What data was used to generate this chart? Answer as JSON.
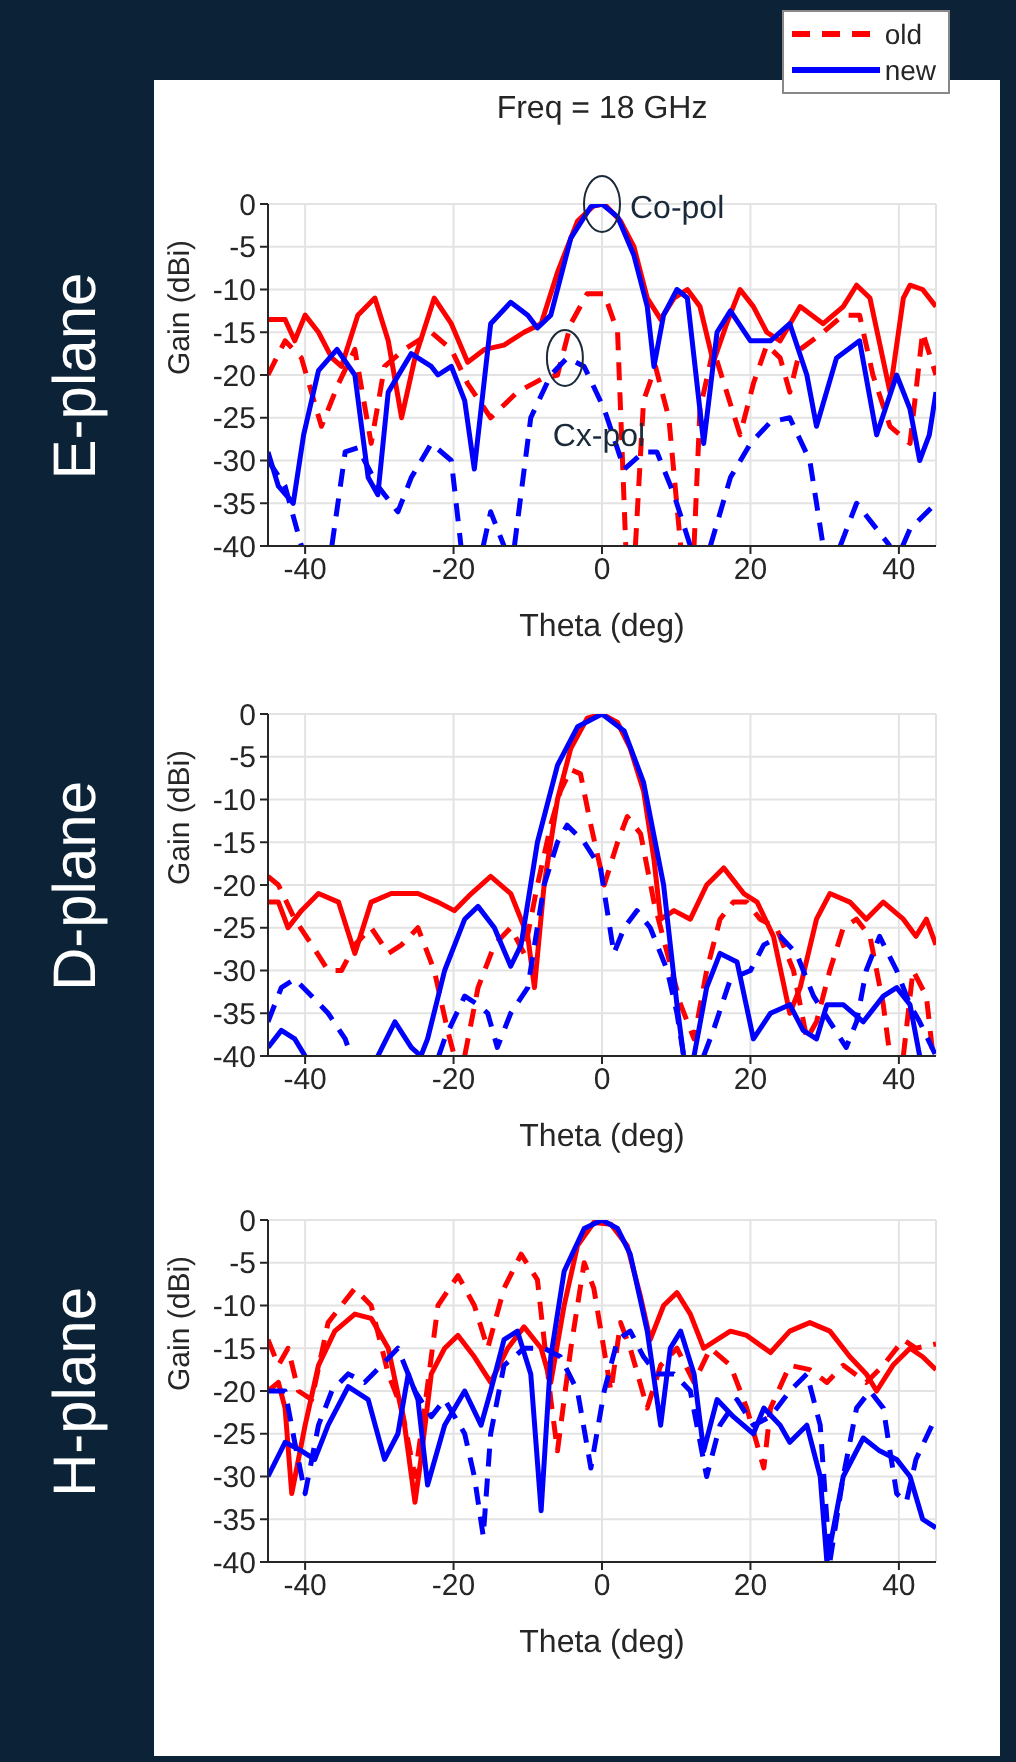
{
  "chart_data": [
    {
      "type": "line",
      "title": "Freq = 18 GHz",
      "subtitle": "E-plane",
      "xlabel": "Theta (deg)",
      "ylabel": "Gain (dBi)",
      "xlim": [
        -45,
        45
      ],
      "xticks": [
        -40,
        -20,
        0,
        20,
        40
      ],
      "ylim": [
        -40,
        0
      ],
      "yticks": [
        0,
        -5,
        -10,
        -15,
        -20,
        -25,
        -30,
        -35,
        -40
      ],
      "grid": true,
      "legend": "top right",
      "annotations": [
        {
          "text": "Co-pol",
          "x": 0,
          "y": 0
        },
        {
          "text": "Cx-pol",
          "x": -5,
          "y": -18
        }
      ],
      "series": [
        {
          "color": "#ff0000",
          "line_style": "solid",
          "x": [
            -45,
            -42.7,
            -41.4,
            -40,
            -38.2,
            -36.4,
            -35.1,
            -32.9,
            -30.6,
            -28.8,
            -27,
            -25.2,
            -22.6,
            -20.3,
            -18.1,
            -15.8,
            -13.2,
            -10.5,
            -8.2,
            -6,
            -3.3,
            -1.1,
            0.3,
            2.5,
            4.3,
            6.1,
            7.9,
            9.7,
            11.5,
            13.2,
            15,
            16.8,
            18.6,
            20.4,
            22.2,
            24,
            26.7,
            29.8,
            32.5,
            34.3,
            36.1,
            38.8,
            40.6,
            41.5,
            43.2,
            45
          ],
          "values": [
            -13.5,
            -13.5,
            -16,
            -13,
            -15,
            -18,
            -19,
            -13,
            -11,
            -16,
            -25,
            -18,
            -11,
            -14,
            -18.5,
            -17,
            -16.5,
            -15,
            -14,
            -8,
            -2,
            -0.2,
            0,
            -2,
            -5,
            -11,
            -13.5,
            -11,
            -10,
            -12,
            -18.5,
            -14,
            -10,
            -12,
            -15,
            -16,
            -12,
            -14,
            -12,
            -9.5,
            -11,
            -22,
            -11,
            -9.5,
            -10,
            -12
          ]
        },
        {
          "name": "old",
          "color": "#ff0000",
          "line_style": "dashed",
          "x": [
            -45,
            -42.7,
            -40.5,
            -37.8,
            -35.5,
            -33.3,
            -31.1,
            -29.3,
            -26.6,
            -23,
            -20.3,
            -18.1,
            -15,
            -11.4,
            -8.2,
            -6,
            -4.2,
            -2,
            0.3,
            2.1,
            3.2,
            3.6,
            4.5,
            5.6,
            7.2,
            9,
            10.6,
            11.2,
            12.4,
            13.2,
            15,
            16.8,
            18.6,
            20.4,
            22.2,
            24,
            25.3,
            26.7,
            29.8,
            32.5,
            34.7,
            36.5,
            38.8,
            41.5,
            43.2,
            45
          ],
          "values": [
            -20,
            -16,
            -18,
            -26,
            -21,
            -17,
            -28,
            -19,
            -17,
            -15,
            -17,
            -21,
            -25,
            -22,
            -20.5,
            -20,
            -14,
            -10.5,
            -10.5,
            -15,
            -40,
            null,
            -40,
            -23,
            -19,
            -25,
            -40,
            null,
            -40,
            -24,
            -17,
            -22,
            -27,
            -21,
            -16.5,
            -18,
            -22,
            -17,
            -15,
            -13,
            -13,
            -20,
            -26,
            -28,
            -15,
            -20
          ]
        },
        {
          "name": "new",
          "color": "#0000ff",
          "line_style": "solid",
          "x": [
            -45,
            -43.6,
            -41.6,
            -40.2,
            -38.2,
            -35.7,
            -33.3,
            -31.5,
            -30.2,
            -28.8,
            -25.7,
            -23,
            -22.1,
            -20.3,
            -18.5,
            -17.2,
            -15,
            -12.3,
            -10,
            -8.7,
            -6.9,
            -4.2,
            -1.5,
            0,
            2.1,
            4.3,
            6.1,
            7,
            8.3,
            10.1,
            11.5,
            13.7,
            15.5,
            17.3,
            20,
            22.7,
            25.3,
            27.6,
            28.9,
            31.6,
            34.7,
            37,
            39.7,
            41.5,
            42.8,
            44.1,
            45
          ],
          "values": [
            -29,
            -33,
            -35,
            -27,
            -19.5,
            -17,
            -20,
            -32,
            -34,
            -22,
            -17.5,
            -19,
            -20,
            -19,
            -23,
            -31,
            -14,
            -11.5,
            -13,
            -14.5,
            -13,
            -4,
            -0.3,
            0,
            -1.5,
            -6,
            -12,
            -19,
            -13,
            -10,
            -11,
            -28,
            -15,
            -12.5,
            -16,
            -16,
            -14,
            -20,
            -26,
            -18,
            -16,
            -27,
            -20,
            -24,
            -30,
            -27,
            -22
          ]
        },
        {
          "color": "#0000ff",
          "line_style": "dashed",
          "x": [
            -45,
            -42.7,
            -40.5,
            -40,
            -36.4,
            -34.6,
            -32.9,
            -30.2,
            -27.5,
            -25.7,
            -23,
            -20.3,
            -19,
            -17,
            -16,
            -15,
            -13.2,
            -12.5,
            -11.8,
            -9.6,
            -6.9,
            -4.7,
            -2.4,
            0.3,
            3,
            5.6,
            7.4,
            9.7,
            11.9,
            13,
            14.6,
            17.3,
            20,
            22.7,
            25.3,
            28,
            29.8,
            31,
            32.1,
            34.3,
            36.1,
            38.8,
            39.5,
            40.5,
            41.5,
            45
          ],
          "values": [
            -30,
            -33,
            -40,
            null,
            -40,
            -29,
            -28.5,
            -33,
            -36,
            -32,
            -28,
            -30,
            -40,
            null,
            -40,
            -36,
            -40,
            null,
            -40,
            -25,
            -20,
            -18,
            -19,
            -24,
            -31,
            -29,
            -29,
            -34,
            -40,
            null,
            -40,
            -32,
            -28,
            -25.5,
            -25,
            -30,
            -40,
            null,
            -40,
            -35,
            -37,
            -40,
            null,
            -40,
            -38,
            -35
          ]
        }
      ]
    },
    {
      "type": "line",
      "subtitle": "D-plane",
      "xlabel": "Theta (deg)",
      "ylabel": "Gain (dBi)",
      "xlim": [
        -45,
        45
      ],
      "xticks": [
        -40,
        -20,
        0,
        20,
        40
      ],
      "ylim": [
        -40,
        0
      ],
      "yticks": [
        0,
        -5,
        -10,
        -15,
        -20,
        -25,
        -30,
        -35,
        -40
      ],
      "grid": true,
      "series": [
        {
          "color": "#ff0000",
          "line_style": "solid",
          "x": [
            -45,
            -43.6,
            -42.3,
            -40.5,
            -38.2,
            -35.5,
            -33.3,
            -31.1,
            -28.4,
            -24.8,
            -22.1,
            -19.9,
            -17.6,
            -15,
            -12.3,
            -10,
            -9.1,
            -7.8,
            -6,
            -4.2,
            -2,
            0,
            2.1,
            3.8,
            5.6,
            7,
            7.9,
            9.7,
            11.9,
            14.1,
            16.4,
            19.1,
            20.9,
            23.1,
            25.3,
            26.7,
            28.9,
            30.7,
            33.4,
            35.6,
            37.9,
            40.6,
            42.3,
            43.7,
            45
          ],
          "values": [
            -22,
            -22,
            -25,
            -23,
            -21,
            -22,
            -28,
            -22,
            -21,
            -21,
            -22,
            -23,
            -21,
            -19,
            -21,
            -26,
            -32,
            -20,
            -10,
            -4,
            -0.5,
            0,
            -1,
            -4,
            -9,
            -17,
            -24,
            -23,
            -24,
            -20,
            -18,
            -21,
            -22,
            -26,
            -35,
            -32,
            -24,
            -21,
            -22,
            -24,
            -22,
            -24,
            -26,
            -24,
            -27
          ]
        },
        {
          "color": "#ff0000",
          "line_style": "dashed",
          "x": [
            -45,
            -43.6,
            -41.4,
            -39.1,
            -36.9,
            -35.1,
            -33.3,
            -31.1,
            -28.8,
            -27,
            -24.8,
            -22.6,
            -20.8,
            -19.9,
            -19.5,
            -18.5,
            -16.7,
            -14.5,
            -12.3,
            -10.5,
            -8.7,
            -6.9,
            -5.6,
            -4.2,
            -2.9,
            -1.5,
            0.3,
            2.1,
            3.4,
            5.2,
            7,
            8.8,
            10.6,
            12.4,
            14.1,
            15.9,
            17.7,
            19.5,
            21.3,
            23.5,
            25.8,
            27.6,
            28.9,
            30.7,
            32.5,
            34.3,
            36.1,
            37.9,
            38.8,
            39.5,
            40.6,
            41.9,
            43.7,
            44.6
          ],
          "values": [
            -19,
            -20,
            -24,
            -27,
            -30,
            -30,
            -27,
            -25,
            -28,
            -27,
            -25,
            -30,
            -37,
            -40,
            null,
            -40,
            -32,
            -27,
            -25,
            -28,
            -20,
            -13,
            -9,
            -6.5,
            -7,
            -13,
            -20,
            -15,
            -12,
            -14,
            -22,
            -28,
            -34,
            -38,
            -30,
            -24,
            -22,
            -22,
            -24,
            -25,
            -30,
            -38,
            -36,
            -30,
            -25,
            -24,
            -26,
            -34,
            -40,
            null,
            -40,
            -30,
            -33,
            -40
          ]
        },
        {
          "color": "#0000ff",
          "line_style": "solid",
          "x": [
            -45,
            -43.2,
            -41.4,
            -40,
            -35,
            -30.2,
            -27.9,
            -25.7,
            -24.4,
            -23.5,
            -21.2,
            -18.5,
            -16.7,
            -14.5,
            -12.3,
            -10.9,
            -8.7,
            -6,
            -3.3,
            0,
            3,
            5.6,
            8.3,
            10.1,
            11,
            11.7,
            12.4,
            14.1,
            15.9,
            18.2,
            20.4,
            22.7,
            25.3,
            27.1,
            28.9,
            30.3,
            32.5,
            35.2,
            37.9,
            39.7,
            41.5,
            42.8
          ],
          "values": [
            -39,
            -37,
            -38,
            -40,
            null,
            -40,
            -36,
            -39,
            -40,
            -38,
            -30,
            -24,
            -22.5,
            -25,
            -29.5,
            -27,
            -15,
            -6,
            -1.5,
            0,
            -2,
            -8,
            -20,
            -34,
            -40,
            null,
            -40,
            -32,
            -28,
            -29,
            -38,
            -35,
            -34,
            -37,
            -38,
            -34,
            -34,
            -36,
            -33,
            -32,
            -34,
            -40
          ]
        },
        {
          "color": "#0000ff",
          "line_style": "dashed",
          "x": [
            -45,
            -43.2,
            -41.4,
            -39.1,
            -36.9,
            -34.6,
            -33.8,
            -30,
            -22,
            -21.2,
            -18.5,
            -16.7,
            -15.4,
            -14.1,
            -12.3,
            -10,
            -7.8,
            -6,
            -4.7,
            -2.4,
            -0.2,
            1.6,
            3,
            4.7,
            6.5,
            8.8,
            10.1,
            11,
            12,
            13.7,
            15,
            17.3,
            20,
            21.8,
            24,
            26.2,
            28.5,
            30.7,
            32.9,
            34.3,
            35.6,
            37.4,
            39.7,
            41.5,
            42.8,
            45
          ],
          "values": [
            -36,
            -32,
            -31,
            -33,
            -35,
            -38,
            -40,
            null,
            -40,
            -38,
            -33,
            -34,
            -35,
            -39,
            -35,
            -32,
            -20,
            -15,
            -13,
            -15,
            -18,
            -28,
            -25,
            -23,
            -25,
            -30,
            -35,
            -40,
            null,
            -40,
            -37,
            -31,
            -30,
            -27,
            -26,
            -28,
            -33,
            -36,
            -39,
            -36,
            -30,
            -26,
            -30,
            -34,
            -36,
            -40
          ]
        }
      ]
    },
    {
      "type": "line",
      "subtitle": "H-plane",
      "xlabel": "Theta (deg)",
      "ylabel": "Gain (dBi)",
      "xlim": [
        -45,
        45
      ],
      "xticks": [
        -40,
        -20,
        0,
        20,
        40
      ],
      "ylim": [
        -40,
        0
      ],
      "yticks": [
        0,
        -5,
        -10,
        -15,
        -20,
        -25,
        -30,
        -35,
        -40
      ],
      "grid": true,
      "series": [
        {
          "color": "#ff0000",
          "line_style": "solid",
          "x": [
            -45,
            -43.6,
            -42.7,
            -41.8,
            -40.9,
            -40,
            -38.2,
            -36,
            -33.3,
            -31.1,
            -28.8,
            -26.6,
            -25.2,
            -24.4,
            -23,
            -21.2,
            -19.4,
            -17.2,
            -15,
            -12.7,
            -10.5,
            -8.2,
            -6.9,
            -5.1,
            -3.3,
            -1.1,
            1.2,
            3.4,
            5.2,
            6.5,
            8.3,
            10.1,
            11.9,
            13.7,
            15.5,
            17.3,
            19.5,
            22.7,
            25.3,
            28,
            30.7,
            33.4,
            35.6,
            37,
            39.2,
            41.5,
            43.2,
            45
          ],
          "values": [
            -20,
            -19,
            -22,
            -32,
            -28,
            -24,
            -17,
            -13,
            -11,
            -11.5,
            -15,
            -24,
            -33,
            -28,
            -18,
            -15,
            -13.5,
            -16,
            -19,
            -15,
            -12.5,
            -15,
            -19,
            -10,
            -3,
            -0.3,
            -0.5,
            -3,
            -9,
            -14,
            -10,
            -8.5,
            -11,
            -15,
            -14,
            -13,
            -13.5,
            -15.5,
            -13,
            -12,
            -13,
            -16,
            -18,
            -20,
            -17,
            -15,
            -16,
            -17.5
          ]
        },
        {
          "color": "#ff0000",
          "line_style": "dashed",
          "x": [
            -45,
            -43.6,
            -42.3,
            -40.9,
            -39.1,
            -36.9,
            -33.3,
            -31.1,
            -28.8,
            -27,
            -25.2,
            -23.9,
            -22.1,
            -19.4,
            -17.2,
            -15.4,
            -13.2,
            -10.9,
            -8.7,
            -6.9,
            -6,
            -4.2,
            -2.4,
            -1.1,
            1.2,
            2.5,
            3.8,
            6.1,
            7.9,
            10.1,
            12.4,
            14.6,
            17.3,
            19.5,
            21.8,
            22.7,
            25.3,
            28,
            30.3,
            32.5,
            35.6,
            37.9,
            40.6,
            42.3,
            45
          ],
          "values": [
            -14,
            -17,
            -15,
            -20,
            -21,
            -12,
            -8,
            -10,
            -18,
            -22,
            -30,
            -22,
            -10,
            -6.5,
            -10,
            -15,
            -8,
            -4,
            -7,
            -21,
            -27,
            -15,
            -5,
            -8,
            -20,
            -12,
            -15,
            -22,
            -17,
            -15,
            -19,
            -15,
            -17,
            -22,
            -29,
            -22,
            -17,
            -17.5,
            -19,
            -17,
            -19,
            -17,
            -14,
            -15,
            -14.5
          ]
        },
        {
          "color": "#0000ff",
          "line_style": "solid",
          "x": [
            -45,
            -42.7,
            -40.5,
            -38.7,
            -36.9,
            -34.2,
            -31.5,
            -29.3,
            -27.5,
            -26.1,
            -24.8,
            -23.5,
            -21.2,
            -18.5,
            -16.3,
            -15,
            -13.2,
            -11.4,
            -9.6,
            -8.2,
            -6.9,
            -5.1,
            -2.4,
            0,
            2.1,
            3.8,
            6.1,
            7.9,
            9.2,
            10.6,
            12.4,
            13.7,
            15.5,
            17.7,
            20.4,
            21.8,
            24,
            25.3,
            27.6,
            29.4,
            30.3,
            31.2,
            32.5,
            35.2,
            37.4,
            39.7,
            41.5,
            43.2,
            45
          ],
          "values": [
            -30,
            -26,
            -27,
            -28,
            -24,
            -19.5,
            -21,
            -28,
            -25,
            -18,
            -21,
            -31,
            -24,
            -20,
            -24,
            -20,
            -14,
            -13,
            -18,
            -34,
            -16,
            -6,
            -1,
            0,
            -1,
            -4,
            -13,
            -24,
            -15,
            -13,
            -18,
            -27,
            -21,
            -23,
            -25,
            -22,
            -24,
            -26,
            -24,
            -30,
            -40,
            -36,
            -30,
            -25.5,
            -27,
            -28,
            -30,
            -35,
            -36
          ]
        },
        {
          "color": "#0000ff",
          "line_style": "dashed",
          "x": [
            -45,
            -42.7,
            -41.4,
            -40,
            -38.2,
            -36.4,
            -34.2,
            -32,
            -29.7,
            -27.5,
            -25.2,
            -23,
            -21.2,
            -18.5,
            -17.2,
            -16,
            -15,
            -13.2,
            -10.5,
            -7.8,
            -5.6,
            -3.3,
            -1.5,
            0.3,
            2.1,
            3.8,
            5.6,
            7.4,
            9.7,
            11.9,
            14.1,
            15.9,
            18.2,
            20.4,
            22.7,
            25.3,
            27.6,
            29.4,
            30.7,
            32.5,
            34.3,
            36.1,
            37.9,
            39.7,
            41,
            42.3,
            45
          ],
          "values": [
            -20,
            -20,
            -26,
            -32,
            -24,
            -20,
            -18,
            -19,
            -17,
            -15,
            -20,
            -23,
            -21,
            -25,
            -30,
            -37,
            -25,
            -17,
            -15,
            -15,
            -16,
            -20,
            -29,
            -20,
            -14,
            -13,
            -16,
            -18,
            -18,
            -20,
            -30,
            -24,
            -21,
            -24,
            -23,
            -20,
            -18,
            -24,
            -40,
            -30,
            -22,
            -20,
            -22,
            -32,
            -33,
            -28,
            -23
          ]
        }
      ]
    }
  ]
}
